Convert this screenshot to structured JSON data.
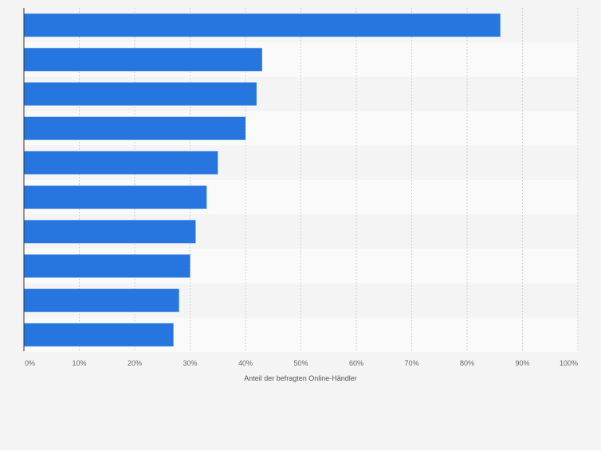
{
  "chart_data": {
    "type": "bar",
    "orientation": "horizontal",
    "categories": [
      "",
      "",
      "",
      "",
      "",
      "",
      "",
      "",
      "",
      ""
    ],
    "values": [
      86,
      43,
      42,
      40,
      35,
      33,
      31,
      30,
      28,
      27
    ],
    "xlabel": "Anteil der befragten Online-Händler",
    "ylabel": "",
    "xlim": [
      0,
      100
    ],
    "xticks": [
      0,
      10,
      20,
      30,
      40,
      50,
      60,
      70,
      80,
      90,
      100
    ],
    "xtick_labels": [
      "0%",
      "10%",
      "20%",
      "30%",
      "40%",
      "50%",
      "60%",
      "70%",
      "80%",
      "90%",
      "100%"
    ],
    "grid": true,
    "bar_color": "#2776e0"
  }
}
